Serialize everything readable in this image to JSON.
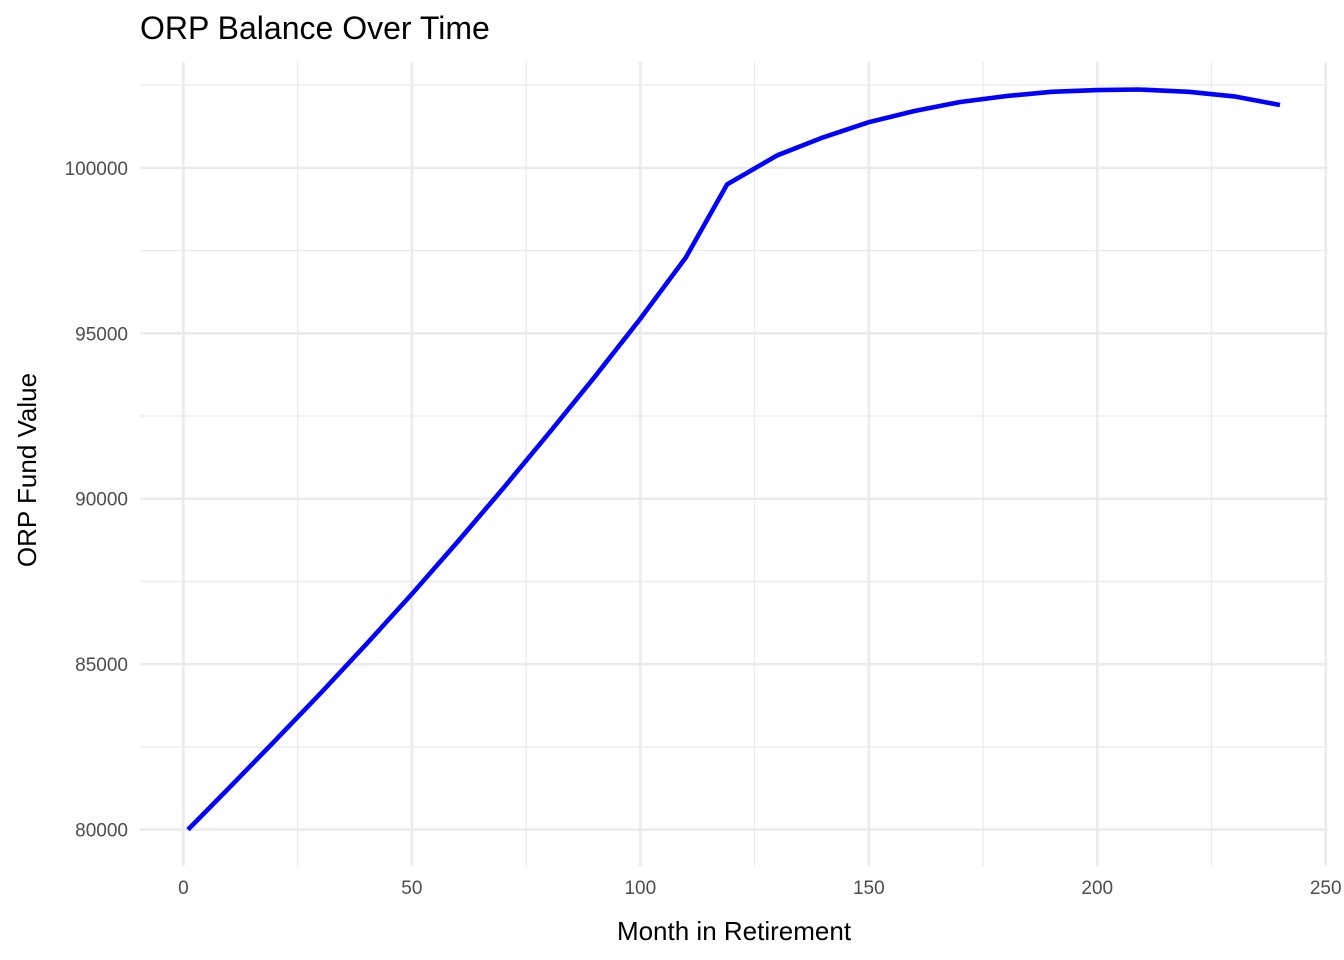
{
  "chart_data": {
    "type": "line",
    "title": "ORP Balance Over Time",
    "xlabel": "Month in Retirement",
    "ylabel": "ORP Fund Value",
    "xlim": [
      -9.5,
      250.5
    ],
    "ylim": [
      78900,
      103200
    ],
    "x_ticks": [
      0,
      50,
      100,
      150,
      200,
      250
    ],
    "x_tick_labels": [
      "0",
      "50",
      "100",
      "150",
      "200",
      "250"
    ],
    "x_minor_ticks": [
      25,
      75,
      125,
      175,
      225
    ],
    "y_ticks": [
      80000,
      85000,
      90000,
      95000,
      100000
    ],
    "y_tick_labels": [
      "80000",
      "85000",
      "90000",
      "95000",
      "100000"
    ],
    "y_minor_ticks": [
      82500,
      87500,
      92500,
      97500,
      102500
    ],
    "grid": true,
    "legend": "none",
    "line_color": "#0000ff",
    "series": [
      {
        "x": [
          1,
          10,
          20,
          30,
          40,
          50,
          60,
          70,
          80,
          90,
          100,
          110,
          119,
          130,
          140,
          150,
          160,
          170,
          180,
          190,
          200,
          209,
          220,
          230,
          240
        ],
        "y": [
          80000,
          81260,
          82680,
          84120,
          85600,
          87120,
          88700,
          90320,
          91980,
          93680,
          95440,
          97300,
          99500,
          100380,
          100920,
          101380,
          101720,
          101990,
          102170,
          102300,
          102350,
          102370,
          102300,
          102160,
          101900
        ]
      }
    ]
  }
}
